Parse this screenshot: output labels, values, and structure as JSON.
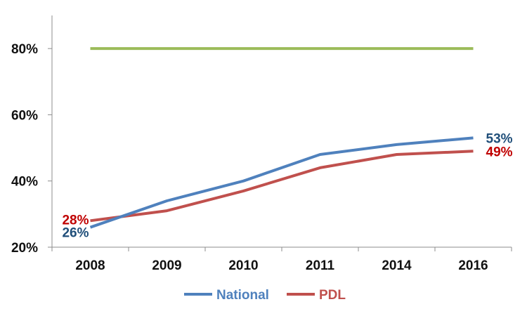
{
  "chart_data": {
    "type": "line",
    "categories": [
      "2008",
      "2009",
      "2010",
      "2011",
      "2014",
      "2016"
    ],
    "series": [
      {
        "name": "National",
        "values": [
          26,
          34,
          40,
          48,
          51,
          53
        ],
        "color": "#4F81BD"
      },
      {
        "name": "PDL",
        "values": [
          28,
          31,
          37,
          44,
          48,
          49
        ],
        "color": "#C0504D"
      },
      {
        "name": "",
        "values": [
          80,
          80,
          80,
          80,
          80,
          80
        ],
        "color": "#9BBB59"
      }
    ],
    "data_labels": [
      {
        "series": 0,
        "index": 0,
        "text": "26%",
        "color": "#1F4E79"
      },
      {
        "series": 1,
        "index": 0,
        "text": "28%",
        "color": "#C00000"
      },
      {
        "series": 0,
        "index": 5,
        "text": "53%",
        "color": "#1F4E79"
      },
      {
        "series": 1,
        "index": 5,
        "text": "49%",
        "color": "#C00000"
      }
    ],
    "y_ticks": [
      20,
      40,
      60,
      80
    ],
    "y_tick_labels": [
      "20%",
      "40%",
      "60%",
      "80%"
    ],
    "ylim": [
      20,
      90
    ],
    "title": "",
    "xlabel": "",
    "ylabel": "",
    "grid": false,
    "legend": {
      "position": "bottom",
      "entries": [
        "National",
        "PDL"
      ]
    }
  }
}
